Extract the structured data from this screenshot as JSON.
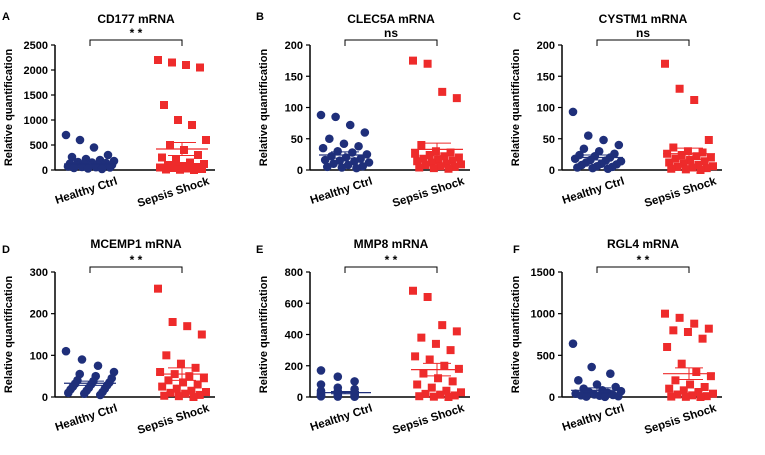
{
  "colors": {
    "healthy": "#1f2f7a",
    "sepsis": "#ee2b2b",
    "axis": "#000000"
  },
  "chart_data": [
    {
      "type": "scatter",
      "panel": "A",
      "title": "CD177 mRNA",
      "ylabel": "Relative quantification",
      "ylim": [
        0,
        2500
      ],
      "yticks": [
        0,
        500,
        1000,
        1500,
        2000,
        2500
      ],
      "categories": [
        "Healthy Ctrl",
        "Sepsis Shock"
      ],
      "significance": "* *",
      "series": [
        {
          "name": "Healthy Ctrl",
          "mean": 120,
          "sem": 40,
          "values": [
            700,
            600,
            450,
            300,
            260,
            220,
            200,
            180,
            160,
            150,
            140,
            130,
            120,
            110,
            100,
            95,
            90,
            80,
            70,
            60,
            55,
            50,
            40,
            30,
            20
          ]
        },
        {
          "name": "Sepsis Shock",
          "mean": 420,
          "sem": 130,
          "values": [
            2200,
            2150,
            2100,
            2050,
            1300,
            1000,
            900,
            600,
            500,
            400,
            300,
            250,
            200,
            150,
            120,
            100,
            80,
            60,
            50,
            40,
            30,
            20,
            10,
            5,
            0
          ]
        }
      ]
    },
    {
      "type": "scatter",
      "panel": "B",
      "title": "CLEC5A mRNA",
      "ylabel": "Relative quantification",
      "ylim": [
        0,
        200
      ],
      "yticks": [
        0,
        50,
        100,
        150,
        200
      ],
      "categories": [
        "Healthy Ctrl",
        "Sepsis Shock"
      ],
      "significance": "ns",
      "series": [
        {
          "name": "Healthy Ctrl",
          "mean": 24,
          "sem": 5,
          "values": [
            88,
            85,
            72,
            60,
            50,
            42,
            38,
            35,
            30,
            28,
            25,
            22,
            20,
            18,
            16,
            15,
            14,
            12,
            10,
            8,
            6,
            5,
            4,
            3
          ]
        },
        {
          "name": "Sepsis Shock",
          "mean": 33,
          "sem": 10,
          "values": [
            175,
            170,
            125,
            115,
            40,
            30,
            28,
            26,
            24,
            22,
            20,
            18,
            16,
            15,
            14,
            12,
            10,
            9,
            8,
            6,
            5,
            4,
            3,
            2
          ]
        }
      ]
    },
    {
      "type": "scatter",
      "panel": "C",
      "title": "CYSTM1 mRNA",
      "ylabel": "Relative quantification",
      "ylim": [
        0,
        200
      ],
      "yticks": [
        0,
        50,
        100,
        150,
        200
      ],
      "categories": [
        "Healthy Ctrl",
        "Sepsis Shock"
      ],
      "significance": "ns",
      "series": [
        {
          "name": "Healthy Ctrl",
          "mean": 20,
          "sem": 4,
          "values": [
            93,
            55,
            48,
            40,
            34,
            30,
            26,
            24,
            22,
            20,
            18,
            16,
            15,
            14,
            12,
            10,
            9,
            8,
            6,
            5,
            4,
            3,
            2
          ]
        },
        {
          "name": "Sepsis Shock",
          "mean": 26,
          "sem": 9,
          "values": [
            170,
            130,
            112,
            48,
            36,
            30,
            28,
            26,
            24,
            22,
            20,
            18,
            16,
            14,
            12,
            10,
            8,
            6,
            5,
            4,
            3,
            2,
            1,
            0
          ]
        }
      ]
    },
    {
      "type": "scatter",
      "panel": "D",
      "title": "MCEMP1 mRNA",
      "ylabel": "Relative quantification",
      "ylim": [
        0,
        300
      ],
      "yticks": [
        0,
        100,
        200,
        300
      ],
      "categories": [
        "Healthy Ctrl",
        "Sepsis Shock"
      ],
      "significance": "* *",
      "series": [
        {
          "name": "Healthy Ctrl",
          "mean": 33,
          "sem": 5,
          "values": [
            110,
            90,
            75,
            60,
            55,
            50,
            45,
            40,
            38,
            35,
            32,
            30,
            28,
            25,
            22,
            20,
            18,
            15,
            12,
            10,
            8,
            5
          ]
        },
        {
          "name": "Sepsis Shock",
          "mean": 55,
          "sem": 15,
          "values": [
            260,
            180,
            170,
            150,
            100,
            80,
            70,
            60,
            55,
            50,
            45,
            40,
            35,
            30,
            25,
            20,
            15,
            12,
            10,
            8,
            5,
            3,
            2,
            0
          ]
        }
      ]
    },
    {
      "type": "scatter",
      "panel": "E",
      "title": "MMP8 mRNA",
      "ylabel": "Relative quantification",
      "ylim": [
        0,
        800
      ],
      "yticks": [
        0,
        200,
        400,
        600,
        800
      ],
      "categories": [
        "Healthy Ctrl",
        "Sepsis Shock"
      ],
      "significance": "* *",
      "series": [
        {
          "name": "Healthy Ctrl",
          "mean": 28,
          "sem": 7,
          "values": [
            170,
            130,
            100,
            80,
            60,
            50,
            40,
            35,
            30,
            25,
            20,
            18,
            15,
            12,
            10,
            8,
            6,
            5,
            4,
            3,
            2
          ]
        },
        {
          "name": "Sepsis Shock",
          "mean": 175,
          "sem": 40,
          "values": [
            680,
            640,
            460,
            420,
            380,
            340,
            300,
            260,
            240,
            200,
            180,
            150,
            120,
            100,
            80,
            60,
            40,
            30,
            20,
            15,
            10,
            5,
            2,
            0
          ]
        }
      ]
    },
    {
      "type": "scatter",
      "panel": "F",
      "title": "RGL4 mRNA",
      "ylabel": "Relative quantification",
      "ylim": [
        0,
        1500
      ],
      "yticks": [
        0,
        500,
        1000,
        1500
      ],
      "categories": [
        "Healthy Ctrl",
        "Sepsis Shock"
      ],
      "significance": "* *",
      "series": [
        {
          "name": "Healthy Ctrl",
          "mean": 80,
          "sem": 30,
          "values": [
            640,
            360,
            280,
            200,
            150,
            120,
            100,
            80,
            70,
            60,
            50,
            40,
            30,
            25,
            20,
            15,
            10,
            5,
            2
          ]
        },
        {
          "name": "Sepsis Shock",
          "mean": 280,
          "sem": 70,
          "values": [
            1000,
            950,
            880,
            820,
            800,
            780,
            700,
            600,
            400,
            300,
            250,
            200,
            150,
            120,
            100,
            80,
            60,
            40,
            30,
            20,
            10,
            5,
            2,
            0
          ]
        }
      ]
    }
  ]
}
